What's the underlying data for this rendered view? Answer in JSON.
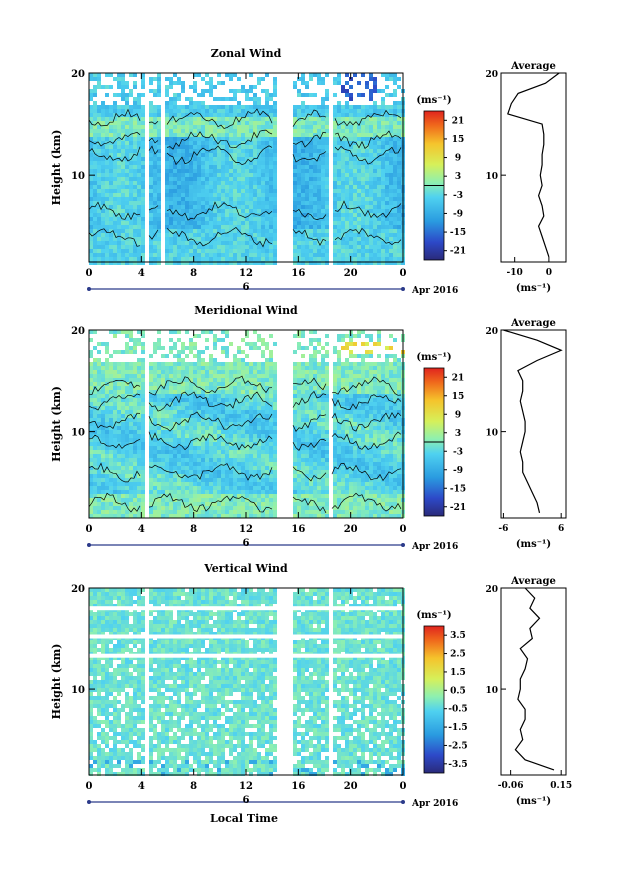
{
  "figure": {
    "xlabel": "Local Time",
    "date_label": "Apr 2016",
    "day_label": "6",
    "panel_ylabel": "Height (km)",
    "profile_title": "Average",
    "unit": "(ms⁻¹)",
    "profile_xunit": "(ms⁻¹)"
  },
  "chart_data": [
    {
      "type": "heatmap",
      "title": "Zonal Wind",
      "ylabel": "Height (km)",
      "x_ticks": [
        "0",
        "4",
        "8",
        "12",
        "16",
        "20",
        "0"
      ],
      "x_range_hours": [
        0,
        24
      ],
      "y_ticks": [
        "20",
        "10"
      ],
      "y_range_km": [
        1.5,
        20
      ],
      "colorbar_ticks": [
        "21",
        "15",
        "9",
        "3",
        "-3",
        "-9",
        "-15",
        "-21"
      ],
      "colorbar_range": [
        -24,
        24
      ],
      "contour_level": 0,
      "data_gaps_hours": [
        [
          4.1,
          4.5
        ],
        [
          5.4,
          5.8
        ],
        [
          14.1,
          15.5
        ],
        [
          18.2,
          18.6
        ]
      ],
      "profile": {
        "title": "Average",
        "x_ticks": [
          "-10",
          "0"
        ],
        "x_range": [
          -14,
          5
        ],
        "y_tick": "10",
        "y_tick_top": "20",
        "heights_km": [
          2,
          3,
          4,
          5,
          6,
          7,
          8,
          9,
          10,
          11,
          12,
          13,
          14,
          15,
          16,
          17,
          18,
          19,
          20
        ],
        "values": [
          0,
          -1,
          -2,
          -3,
          -1.5,
          -2,
          -3,
          -2,
          -2.5,
          -2,
          -2,
          -1.5,
          -1.5,
          -2,
          -12,
          -11,
          -9,
          -1,
          3
        ]
      }
    },
    {
      "type": "heatmap",
      "title": "Meridional Wind",
      "ylabel": "Height (km)",
      "x_ticks": [
        "0",
        "4",
        "8",
        "12",
        "16",
        "20",
        "0"
      ],
      "x_range_hours": [
        0,
        24
      ],
      "y_ticks": [
        "20",
        "10"
      ],
      "y_range_km": [
        1.5,
        20
      ],
      "colorbar_ticks": [
        "21",
        "15",
        "9",
        "3",
        "-3",
        "-9",
        "-15",
        "-21"
      ],
      "colorbar_range": [
        -24,
        24
      ],
      "contour_level": 0,
      "data_gaps_hours": [
        [
          4.1,
          4.5
        ],
        [
          14.1,
          15.5
        ],
        [
          18.2,
          18.5
        ]
      ],
      "profile": {
        "title": "Average",
        "x_ticks": [
          "-6",
          "6"
        ],
        "x_range": [
          -6.5,
          7
        ],
        "y_tick": "10",
        "y_tick_top": "20",
        "heights_km": [
          2,
          3,
          4,
          5,
          6,
          7,
          8,
          9,
          10,
          11,
          12,
          13,
          14,
          15,
          16,
          17,
          18,
          19,
          20
        ],
        "values": [
          1.5,
          1,
          0,
          -1,
          -2,
          -2,
          -2.5,
          -2,
          -1.5,
          -1.5,
          -2,
          -2.5,
          -2,
          -2,
          -3,
          1,
          6,
          1,
          -6
        ]
      }
    },
    {
      "type": "heatmap",
      "title": "Vertical Wind",
      "ylabel": "Height (km)",
      "xlabel": "Local Time",
      "x_ticks": [
        "0",
        "4",
        "8",
        "12",
        "16",
        "20",
        "0"
      ],
      "x_range_hours": [
        0,
        24
      ],
      "y_ticks": [
        "20",
        "10"
      ],
      "y_range_km": [
        1.5,
        20
      ],
      "colorbar_ticks": [
        "3.5",
        "2.5",
        "1.5",
        "0.5",
        "-0.5",
        "-1.5",
        "-2.5",
        "-3.5"
      ],
      "colorbar_range": [
        -4,
        4
      ],
      "data_gaps_hours": [
        [
          4.1,
          4.5
        ],
        [
          14.1,
          15.5
        ],
        [
          18.2,
          18.5
        ]
      ],
      "profile": {
        "title": "Average",
        "x_ticks": [
          "-0.06",
          "0.15"
        ],
        "x_range": [
          -0.1,
          0.17
        ],
        "y_tick": "10",
        "y_tick_top": "20",
        "heights_km": [
          2,
          3,
          4,
          5,
          6,
          7,
          8,
          9,
          10,
          11,
          12,
          13,
          14,
          15,
          16,
          17,
          18,
          19,
          20
        ],
        "values": [
          0.12,
          0.0,
          -0.04,
          -0.01,
          -0.02,
          0.0,
          0.0,
          -0.03,
          -0.02,
          -0.02,
          0.0,
          0.01,
          -0.02,
          0.03,
          0.02,
          0.06,
          0.02,
          0.04,
          0.0
        ]
      }
    }
  ]
}
